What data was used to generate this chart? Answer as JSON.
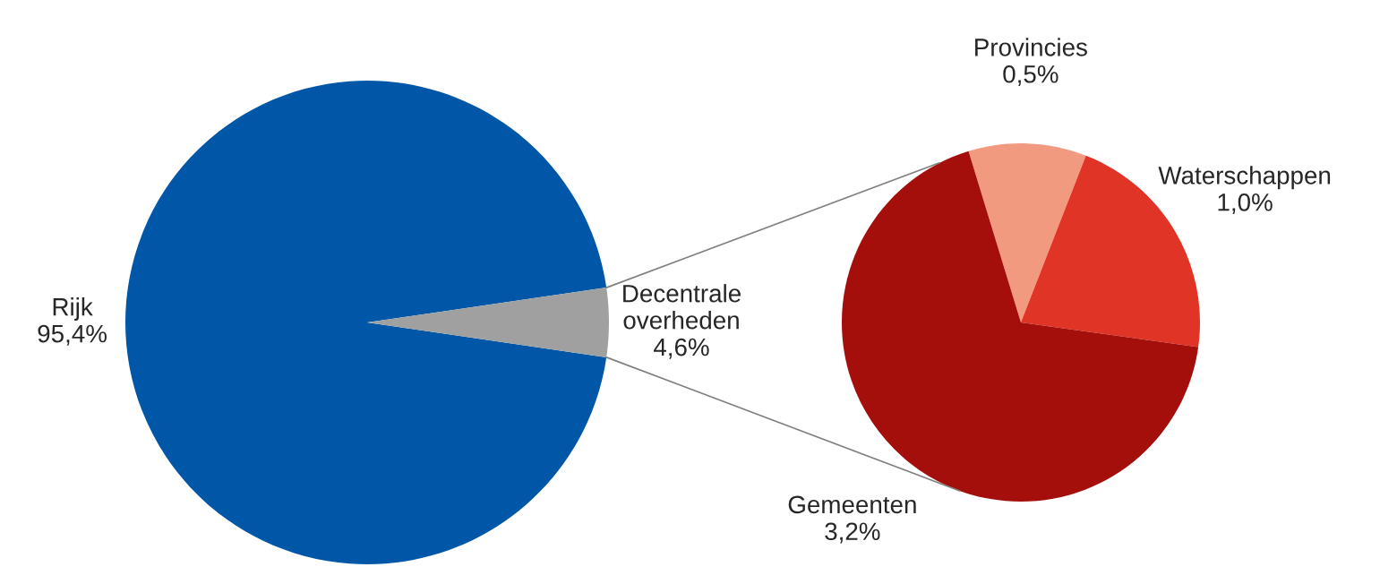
{
  "chart_data": [
    {
      "type": "pie",
      "categories": [
        "Rijk",
        "Decentrale overheden"
      ],
      "values": [
        95.4,
        4.6
      ],
      "colors": [
        "#0057a8",
        "#a0a0a0"
      ],
      "value_labels": [
        "95,4%",
        "4,6%"
      ]
    },
    {
      "type": "pie",
      "categories": [
        "Provincies",
        "Waterschappen",
        "Gemeenten"
      ],
      "values": [
        0.5,
        1.0,
        3.2
      ],
      "colors": [
        "#f19a80",
        "#e03426",
        "#a50f0b"
      ],
      "value_labels": [
        "0,5%",
        "1,0%",
        "3,2%"
      ]
    }
  ]
}
